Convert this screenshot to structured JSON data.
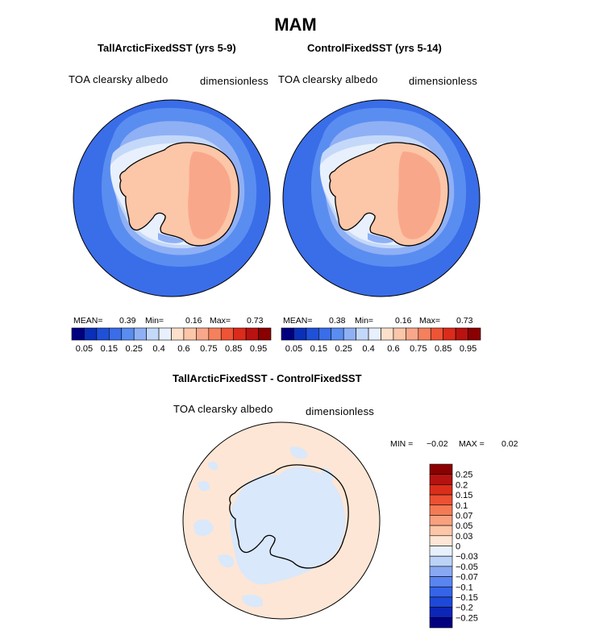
{
  "page_title": "MAM",
  "colors": {
    "abs_palette": [
      "#000080",
      "#0a2fb8",
      "#1f50d8",
      "#3a6de8",
      "#5a8df0",
      "#8fb0f5",
      "#c4d8fa",
      "#e7f0fc",
      "#fde0cb",
      "#fcc6a8",
      "#f9a78a",
      "#f5805d",
      "#ef5436",
      "#dc2b1a",
      "#b91210",
      "#8b0000"
    ],
    "diff_palette": [
      "#000080",
      "#0c26b8",
      "#1e48d8",
      "#3564e8",
      "#5a85f0",
      "#89a8f3",
      "#bcd2f7",
      "#e8f0fb",
      "#fde6d5",
      "#fcc6a8",
      "#f9a07e",
      "#f47a55",
      "#ec5132",
      "#db2e1a",
      "#b5130f",
      "#8b0000"
    ]
  },
  "chart_data": [
    {
      "type": "heatmap",
      "title": "TallArcticFixedSST (yrs 5-9)",
      "variable": "TOA clearsky albedo",
      "units": "dimensionless",
      "stats": {
        "mean_label": "MEAN=",
        "mean": "0.39",
        "min_label": "Min=",
        "min": "0.16",
        "max_label": "Max=",
        "max": "0.73"
      },
      "levels": [
        0.05,
        0.1,
        0.15,
        0.2,
        0.25,
        0.3,
        0.4,
        0.5,
        0.6,
        0.7,
        0.75,
        0.8,
        0.85,
        0.9,
        0.95
      ],
      "tick_labels": [
        "0.05",
        "0.15",
        "0.25",
        "0.4",
        "0.6",
        "0.75",
        "0.85",
        "0.95"
      ]
    },
    {
      "type": "heatmap",
      "title": "ControlFixedSST (yrs 5-14)",
      "variable": "TOA clearsky albedo",
      "units": "dimensionless",
      "stats": {
        "mean_label": "MEAN=",
        "mean": "0.38",
        "min_label": "Min=",
        "min": "0.16",
        "max_label": "Max=",
        "max": "0.73"
      },
      "levels": [
        0.05,
        0.1,
        0.15,
        0.2,
        0.25,
        0.3,
        0.4,
        0.5,
        0.6,
        0.7,
        0.75,
        0.8,
        0.85,
        0.9,
        0.95
      ],
      "tick_labels": [
        "0.05",
        "0.15",
        "0.25",
        "0.4",
        "0.6",
        "0.75",
        "0.85",
        "0.95"
      ]
    },
    {
      "type": "heatmap",
      "title": "TallArcticFixedSST - ControlFixedSST",
      "variable": "TOA clearsky albedo",
      "units": "dimensionless",
      "stats": {
        "min_label": "MIN =",
        "min": "−0.02",
        "max_label": "MAX =",
        "max": "0.02"
      },
      "levels": [
        -0.25,
        -0.2,
        -0.15,
        -0.1,
        -0.07,
        -0.05,
        -0.03,
        0,
        0.03,
        0.05,
        0.07,
        0.1,
        0.15,
        0.2,
        0.25
      ],
      "tick_labels": [
        "0.25",
        "0.2",
        "0.15",
        "0.1",
        "0.07",
        "0.05",
        "0.03",
        "0",
        "−0.03",
        "−0.05",
        "−0.07",
        "−0.1",
        "−0.15",
        "−0.2",
        "−0.25"
      ]
    }
  ]
}
